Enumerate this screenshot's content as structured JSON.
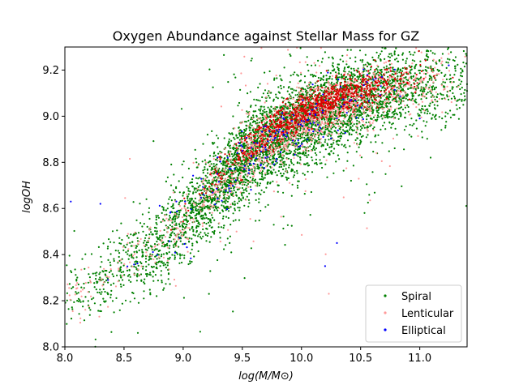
{
  "chart_data": {
    "type": "scatter",
    "title": "Oxygen Abundance against Stellar Mass for GZ",
    "xlabel": "log(M/M⊙)",
    "ylabel": "logOH",
    "xlim": [
      8.0,
      11.4
    ],
    "ylim": [
      8.0,
      9.3
    ],
    "xticks": [
      "8.0",
      "8.5",
      "9.0",
      "9.5",
      "10.0",
      "10.5",
      "11.0"
    ],
    "yticks": [
      "8.0",
      "8.2",
      "8.4",
      "8.6",
      "8.8",
      "9.0",
      "9.2"
    ],
    "grid": false,
    "legend_position": "lower-right",
    "series": [
      {
        "name": "Spiral",
        "color": "#008000",
        "approx_count": 9000,
        "trend_samples": [
          {
            "x": 8.2,
            "y": 8.25
          },
          {
            "x": 8.5,
            "y": 8.35
          },
          {
            "x": 8.8,
            "y": 8.45
          },
          {
            "x": 9.0,
            "y": 8.55
          },
          {
            "x": 9.3,
            "y": 8.7
          },
          {
            "x": 9.6,
            "y": 8.85
          },
          {
            "x": 10.0,
            "y": 8.98
          },
          {
            "x": 10.4,
            "y": 9.06
          },
          {
            "x": 10.8,
            "y": 9.12
          },
          {
            "x": 11.1,
            "y": 9.15
          }
        ]
      },
      {
        "name": "Lenticular",
        "color": "#ff9999",
        "approx_count": 2500,
        "trend_samples": [
          {
            "x": 8.8,
            "y": 8.5
          },
          {
            "x": 9.3,
            "y": 8.72
          },
          {
            "x": 9.8,
            "y": 8.92
          },
          {
            "x": 10.2,
            "y": 9.02
          },
          {
            "x": 10.6,
            "y": 9.08
          }
        ]
      },
      {
        "name": "Elliptical",
        "color": "#0000ff",
        "approx_count": 180,
        "trend_samples": [
          {
            "x": 8.05,
            "y": 8.63
          },
          {
            "x": 8.3,
            "y": 8.62
          },
          {
            "x": 9.5,
            "y": 8.85
          },
          {
            "x": 10.0,
            "y": 8.98
          },
          {
            "x": 10.3,
            "y": 8.45
          },
          {
            "x": 10.2,
            "y": 8.35
          },
          {
            "x": 11.0,
            "y": 8.99
          }
        ]
      }
    ]
  }
}
